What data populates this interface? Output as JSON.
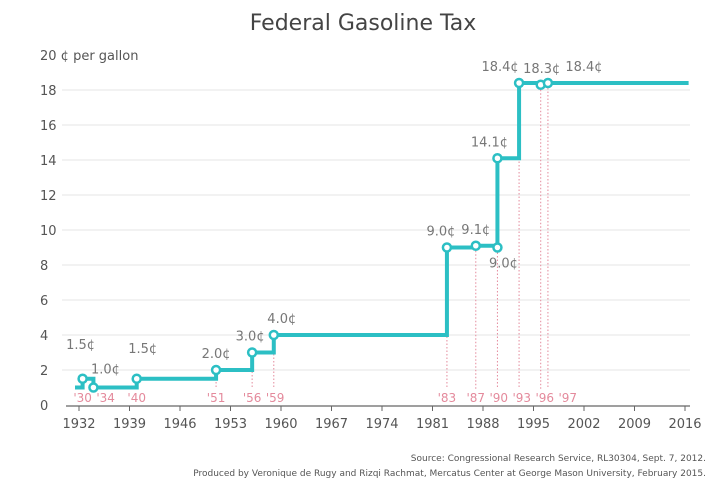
{
  "chart_data": {
    "type": "line",
    "title": "Federal Gasoline Tax",
    "ylabel": "¢ per gallon",
    "ylim": [
      0,
      20
    ],
    "yticks": [
      0,
      2,
      4,
      6,
      8,
      10,
      12,
      14,
      16,
      18,
      20
    ],
    "ytick_top_label": "20 ¢ per gallon",
    "xlim": [
      1932,
      2016
    ],
    "xticks": [
      1932,
      1939,
      1946,
      1953,
      1960,
      1967,
      1974,
      1981,
      1988,
      1995,
      2002,
      2009,
      2016
    ],
    "grid": true,
    "step": true,
    "start": {
      "year": 1932,
      "value": 1.0
    },
    "end_year": 2016,
    "series": [
      {
        "year": 1932.5,
        "value": 1.5,
        "label": "1.5¢",
        "year_label": "'30"
      },
      {
        "year": 1934,
        "value": 1.0,
        "label": "1.0¢",
        "year_label": "'34"
      },
      {
        "year": 1940,
        "value": 1.5,
        "label": "1.5¢",
        "year_label": "'40"
      },
      {
        "year": 1951,
        "value": 2.0,
        "label": "2.0¢",
        "year_label": "'51"
      },
      {
        "year": 1956,
        "value": 3.0,
        "label": "3.0¢",
        "year_label": "'56"
      },
      {
        "year": 1959,
        "value": 4.0,
        "label": "4.0¢",
        "year_label": "'59"
      },
      {
        "year": 1983,
        "value": 9.0,
        "label": "9.0¢",
        "year_label": "'83"
      },
      {
        "year": 1987,
        "value": 9.1,
        "label": "9.1¢",
        "year_label": "'87"
      },
      {
        "year": 1990,
        "value": 9.0,
        "label": "9.0¢",
        "year_label": "'90"
      },
      {
        "year": 1990,
        "value": 14.1,
        "label": "14.1¢",
        "year_label": ""
      },
      {
        "year": 1993,
        "value": 18.4,
        "label": "18.4¢",
        "year_label": "'93"
      },
      {
        "year": 1996,
        "value": 18.3,
        "label": "18.3¢",
        "year_label": "'96"
      },
      {
        "year": 1997,
        "value": 18.4,
        "label": "18.4¢",
        "year_label": "'97"
      }
    ],
    "line_color": "#2cbfc4",
    "guide_color": "#e48a9c",
    "source": "Source: Congressional Research Service, RL30304, Sept. 7, 2012.",
    "credit": "Produced by Veronique de Rugy and Rizqi Rachmat, Mercatus Center at George Mason University, February 2015."
  }
}
